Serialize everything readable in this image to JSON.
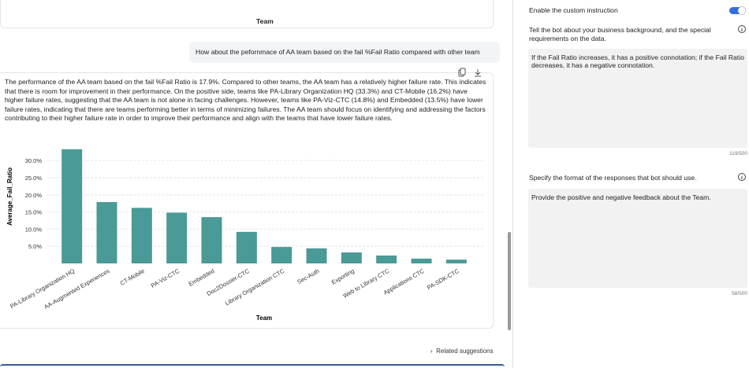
{
  "previous_chart": {
    "x_label": "Team"
  },
  "user_message": "How about the pefornmace of AA team based on the fail %Fail Ratio compared with other team",
  "assistant_message": "The performance of the AA team based on the fail %Fail Ratio is 17.9%. Compared to other teams, the AA team has a relatively higher failure rate. This indicates that there is room for improvement in their performance. On the positive side, teams like PA-Library Organization HQ (33.3%) and CT-Mobile (16.2%) have higher failure rates, suggesting that the AA team is not alone in facing challenges. However, teams like PA-Viz-CTC (14.8%) and Embedded (13.5%) have lower failure rates, indicating that there are teams performing better in terms of minimizing failures. The AA team should focus on identifying and addressing the factors contributing to their higher failure rate in order to improve their performance and align with the teams that have lower failure rates.",
  "chart_data": {
    "type": "bar",
    "x_label": "Team",
    "y_label": "Average_Fail_Ratio",
    "categories": [
      "PA-Library Organization HQ",
      "AA-Augmented Experiences",
      "CT-Mobile",
      "PA-Viz-CTC",
      "Embedded",
      "Doc2Dossier-CTC",
      "Library Organization CTC",
      "Sec-Auth",
      "Exporting",
      "Web to Library CTC",
      "Applications CTC",
      "PA-SDK-CTC"
    ],
    "values": [
      33.3,
      17.9,
      16.2,
      14.8,
      13.5,
      9.2,
      4.8,
      4.4,
      3.2,
      2.3,
      1.4,
      1.1
    ],
    "color": "#4a9a97",
    "ylim": [
      0,
      36
    ],
    "yticks": [
      {
        "value": 5,
        "label": "5.0%"
      },
      {
        "value": 10,
        "label": "10.0%"
      },
      {
        "value": 15,
        "label": "15.0%"
      },
      {
        "value": 20,
        "label": "20.0%"
      },
      {
        "value": 25,
        "label": "25.0%"
      },
      {
        "value": 30,
        "label": "30.0%"
      }
    ],
    "grid": true
  },
  "related_suggestions": "Related suggestions",
  "settings": {
    "toggle_label": "Enable the custom instruction",
    "toggle_on": true,
    "background": {
      "prompt": "Tell the bot about your business background, and the special requirements on the data.",
      "text": "If the Fail Ratio increases, it has a positive connotation; if the Fail Ratio decreases, it has a negative connotation.",
      "count": "119/500"
    },
    "format": {
      "prompt": "Specify the format of the responses that bot should use.",
      "text": "Provide the positive and negative feedback about the Team.",
      "count": "58/500"
    }
  }
}
